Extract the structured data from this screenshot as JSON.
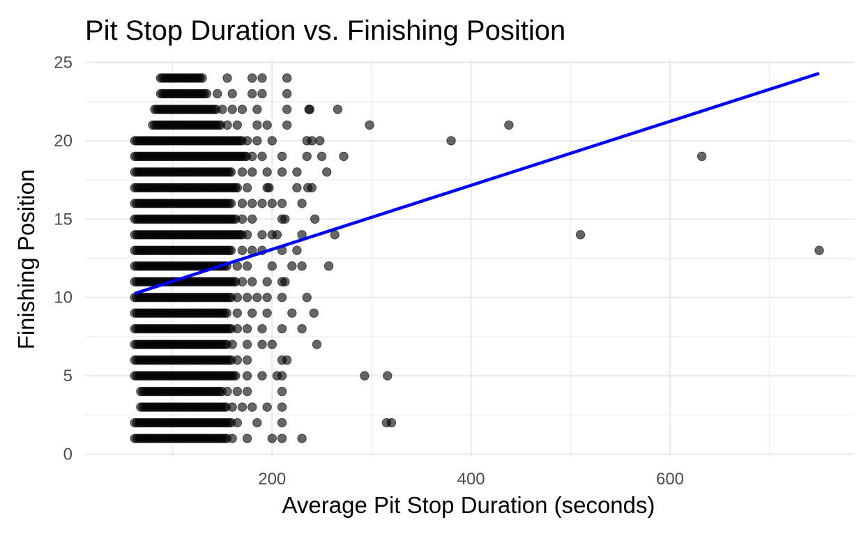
{
  "chart_data": {
    "type": "scatter",
    "title": "Pit Stop Duration vs. Finishing Position",
    "xlabel": "Average Pit Stop Duration (seconds)",
    "ylabel": "Finishing Position",
    "xlim": [
      12,
      785
    ],
    "ylim": [
      -0.2,
      25.2
    ],
    "x_major_ticks": [
      200,
      400,
      600
    ],
    "x_minor_ticks": [
      100,
      300,
      500,
      700
    ],
    "y_major_ticks": [
      0,
      5,
      10,
      15,
      20,
      25
    ],
    "y_minor_ticks": [
      2.5,
      7.5,
      12.5,
      17.5,
      22.5
    ],
    "grid": true,
    "colors": {
      "points": "#000000",
      "trend_line": "#0000ff",
      "grid": "#ebebeb"
    },
    "dense_bands": [
      {
        "y": 1,
        "x_range": [
          62,
          155
        ]
      },
      {
        "y": 2,
        "x_range": [
          62,
          160
        ]
      },
      {
        "y": 3,
        "x_range": [
          68,
          155
        ]
      },
      {
        "y": 4,
        "x_range": [
          68,
          150
        ]
      },
      {
        "y": 5,
        "x_range": [
          62,
          165
        ]
      },
      {
        "y": 6,
        "x_range": [
          62,
          160
        ]
      },
      {
        "y": 7,
        "x_range": [
          62,
          155
        ]
      },
      {
        "y": 8,
        "x_range": [
          62,
          160
        ]
      },
      {
        "y": 9,
        "x_range": [
          62,
          155
        ]
      },
      {
        "y": 10,
        "x_range": [
          62,
          160
        ]
      },
      {
        "y": 11,
        "x_range": [
          62,
          165
        ]
      },
      {
        "y": 12,
        "x_range": [
          62,
          155
        ]
      },
      {
        "y": 13,
        "x_range": [
          62,
          160
        ]
      },
      {
        "y": 14,
        "x_range": [
          62,
          170
        ]
      },
      {
        "y": 15,
        "x_range": [
          62,
          165
        ]
      },
      {
        "y": 16,
        "x_range": [
          62,
          160
        ]
      },
      {
        "y": 17,
        "x_range": [
          62,
          165
        ]
      },
      {
        "y": 18,
        "x_range": [
          62,
          160
        ]
      },
      {
        "y": 19,
        "x_range": [
          62,
          175
        ]
      },
      {
        "y": 20,
        "x_range": [
          62,
          170
        ]
      },
      {
        "y": 21,
        "x_range": [
          80,
          150
        ]
      },
      {
        "y": 22,
        "x_range": [
          82,
          145
        ]
      },
      {
        "y": 23,
        "x_range": [
          88,
          135
        ]
      },
      {
        "y": 24,
        "x_range": [
          88,
          130
        ]
      }
    ],
    "points": [
      [
        160,
        1
      ],
      [
        175,
        1
      ],
      [
        200,
        1
      ],
      [
        210,
        1
      ],
      [
        230,
        1
      ],
      [
        165,
        2
      ],
      [
        185,
        2
      ],
      [
        210,
        2
      ],
      [
        315,
        2
      ],
      [
        320,
        2
      ],
      [
        160,
        3
      ],
      [
        170,
        3
      ],
      [
        180,
        3
      ],
      [
        195,
        3
      ],
      [
        210,
        3
      ],
      [
        155,
        4
      ],
      [
        165,
        4
      ],
      [
        175,
        4
      ],
      [
        210,
        4
      ],
      [
        175,
        5
      ],
      [
        190,
        5
      ],
      [
        205,
        5
      ],
      [
        210,
        5
      ],
      [
        293,
        5
      ],
      [
        316,
        5
      ],
      [
        165,
        6
      ],
      [
        175,
        6
      ],
      [
        210,
        6
      ],
      [
        215,
        6
      ],
      [
        160,
        7
      ],
      [
        175,
        7
      ],
      [
        190,
        7
      ],
      [
        200,
        7
      ],
      [
        245,
        7
      ],
      [
        165,
        8
      ],
      [
        175,
        8
      ],
      [
        190,
        8
      ],
      [
        210,
        8
      ],
      [
        230,
        8
      ],
      [
        165,
        9
      ],
      [
        180,
        9
      ],
      [
        195,
        9
      ],
      [
        220,
        9
      ],
      [
        242,
        9
      ],
      [
        165,
        10
      ],
      [
        175,
        10
      ],
      [
        185,
        10
      ],
      [
        195,
        10
      ],
      [
        210,
        10
      ],
      [
        235,
        10
      ],
      [
        170,
        11
      ],
      [
        180,
        11
      ],
      [
        195,
        11
      ],
      [
        210,
        11
      ],
      [
        213,
        11
      ],
      [
        165,
        12
      ],
      [
        175,
        12
      ],
      [
        200,
        12
      ],
      [
        220,
        12
      ],
      [
        230,
        12
      ],
      [
        257,
        12
      ],
      [
        170,
        13
      ],
      [
        180,
        13
      ],
      [
        190,
        13
      ],
      [
        210,
        13
      ],
      [
        225,
        13
      ],
      [
        175,
        14
      ],
      [
        190,
        14
      ],
      [
        200,
        14
      ],
      [
        205,
        14
      ],
      [
        230,
        14
      ],
      [
        263,
        14
      ],
      [
        510,
        14
      ],
      [
        170,
        15
      ],
      [
        180,
        15
      ],
      [
        210,
        15
      ],
      [
        213,
        15
      ],
      [
        243,
        15
      ],
      [
        170,
        16
      ],
      [
        180,
        16
      ],
      [
        190,
        16
      ],
      [
        200,
        16
      ],
      [
        210,
        16
      ],
      [
        230,
        16
      ],
      [
        165,
        17
      ],
      [
        175,
        17
      ],
      [
        195,
        17
      ],
      [
        197,
        17
      ],
      [
        225,
        17
      ],
      [
        240,
        17
      ],
      [
        236,
        17
      ],
      [
        170,
        18
      ],
      [
        180,
        18
      ],
      [
        195,
        18
      ],
      [
        210,
        18
      ],
      [
        225,
        18
      ],
      [
        255,
        18
      ],
      [
        180,
        19
      ],
      [
        190,
        19
      ],
      [
        210,
        19
      ],
      [
        235,
        19
      ],
      [
        250,
        19
      ],
      [
        272,
        19
      ],
      [
        632,
        19
      ],
      [
        175,
        20
      ],
      [
        185,
        20
      ],
      [
        200,
        20
      ],
      [
        235,
        20
      ],
      [
        240,
        20
      ],
      [
        248,
        20
      ],
      [
        380,
        20
      ],
      [
        155,
        21
      ],
      [
        165,
        21
      ],
      [
        185,
        21
      ],
      [
        195,
        21
      ],
      [
        215,
        21
      ],
      [
        298,
        21
      ],
      [
        438,
        21
      ],
      [
        150,
        22
      ],
      [
        160,
        22
      ],
      [
        170,
        22
      ],
      [
        185,
        22
      ],
      [
        215,
        22
      ],
      [
        237,
        22
      ],
      [
        238,
        22
      ],
      [
        266,
        22
      ],
      [
        145,
        23
      ],
      [
        160,
        23
      ],
      [
        180,
        23
      ],
      [
        190,
        23
      ],
      [
        215,
        23
      ],
      [
        155,
        24
      ],
      [
        180,
        24
      ],
      [
        190,
        24
      ],
      [
        215,
        24
      ],
      [
        750,
        13
      ]
    ],
    "trend_line": {
      "x": [
        62,
        750
      ],
      "y": [
        10.25,
        24.3
      ]
    }
  }
}
